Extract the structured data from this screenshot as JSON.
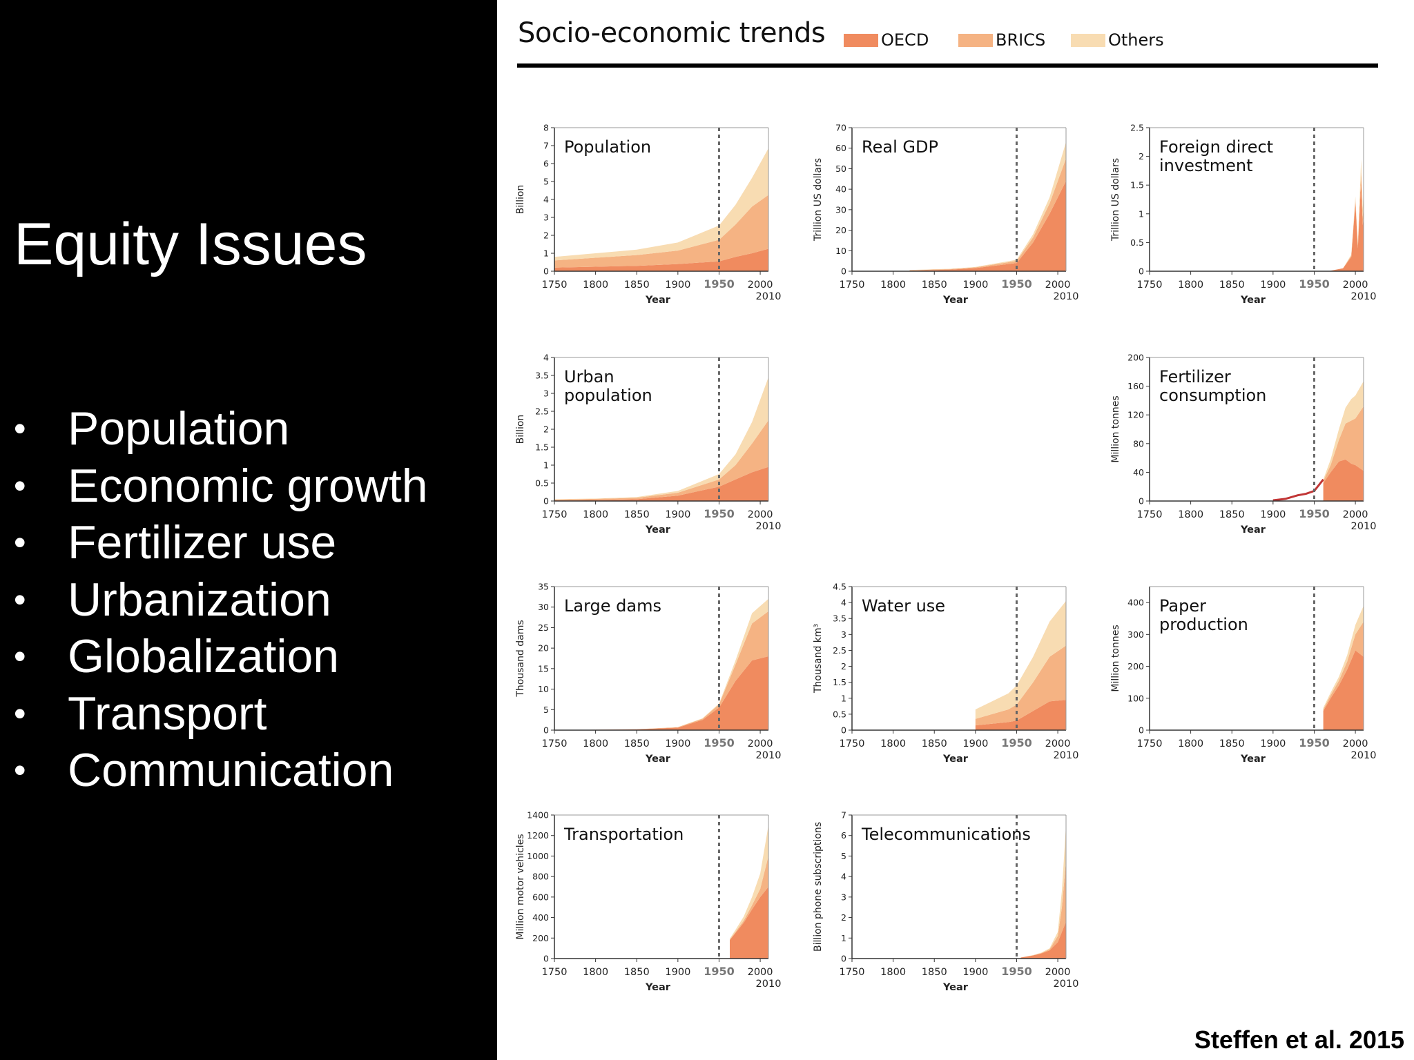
{
  "slide": {
    "title": "Equity Issues",
    "bullets": [
      "Population",
      "Economic growth",
      "Fertilizer use",
      "Urbanization",
      "Globalization",
      "Transport",
      "Communication"
    ],
    "bullet_glyph": "•",
    "citation": "Steffen et al. 2015"
  },
  "colors": {
    "background_left": "#000000",
    "text_left": "#ffffff",
    "oecd": "#f08b5f",
    "brics": "#f5b383",
    "others": "#f8dcb2",
    "oecd_line": "#c13535",
    "reference_line": "#666666"
  },
  "figure": {
    "title": "Socio-economic trends",
    "legend": [
      {
        "label": "OECD",
        "color": "#f08b5f"
      },
      {
        "label": "BRICS",
        "color": "#f5b383"
      },
      {
        "label": "Others",
        "color": "#f8dcb2"
      }
    ]
  },
  "chart_data": [
    {
      "type": "area",
      "title": "Population",
      "ylabel": "Billion",
      "xlabel": "Year",
      "xlim": [
        1750,
        2010
      ],
      "ylim": [
        0,
        8
      ],
      "yticks": [
        "0",
        "1",
        "2",
        "3",
        "4",
        "5",
        "6",
        "7",
        "8"
      ],
      "xticks": [
        "1750",
        "1800",
        "1850",
        "1900",
        "1950",
        "2000"
      ],
      "xend_label": "2010",
      "marker_x": 1950,
      "x": [
        1750,
        1800,
        1850,
        1900,
        1950,
        1970,
        1990,
        2010
      ],
      "series": [
        {
          "name": "OECD",
          "values": [
            0.2,
            0.25,
            0.3,
            0.4,
            0.55,
            0.8,
            1.0,
            1.25
          ]
        },
        {
          "name": "BRICS",
          "values": [
            0.4,
            0.5,
            0.6,
            0.75,
            1.2,
            1.8,
            2.6,
            3.0
          ]
        },
        {
          "name": "Others",
          "values": [
            0.2,
            0.25,
            0.3,
            0.45,
            0.8,
            1.1,
            1.6,
            2.6
          ]
        }
      ]
    },
    {
      "type": "area",
      "title": "Real GDP",
      "ylabel": "Trillion US dollars",
      "xlabel": "Year",
      "xlim": [
        1750,
        2010
      ],
      "ylim": [
        0,
        70
      ],
      "yticks": [
        "0",
        "10",
        "20",
        "30",
        "40",
        "50",
        "60",
        "70"
      ],
      "xticks": [
        "1750",
        "1800",
        "1850",
        "1900",
        "1950",
        "2000"
      ],
      "xend_label": "2010",
      "marker_x": 1950,
      "x": [
        1820,
        1870,
        1900,
        1950,
        1970,
        1990,
        2010
      ],
      "series": [
        {
          "name": "OECD",
          "values": [
            0.3,
            0.8,
            1.5,
            4,
            14,
            28,
            44
          ]
        },
        {
          "name": "BRICS",
          "values": [
            0.2,
            0.3,
            0.4,
            1,
            2.5,
            5,
            11
          ]
        },
        {
          "name": "Others",
          "values": [
            0.1,
            0.1,
            0.2,
            0.6,
            1.5,
            3,
            8
          ]
        }
      ]
    },
    {
      "type": "area",
      "title": "Foreign direct investment",
      "ylabel": "Trillion US dollars",
      "xlabel": "Year",
      "xlim": [
        1750,
        2010
      ],
      "ylim": [
        0,
        2.5
      ],
      "yticks": [
        "0",
        "0.5",
        "1",
        "1.5",
        "2",
        "2.5"
      ],
      "xticks": [
        "1750",
        "1800",
        "1850",
        "1900",
        "1950",
        "2000"
      ],
      "xend_label": "2010",
      "marker_x": 1950,
      "x": [
        1970,
        1985,
        1995,
        2000,
        2003,
        2007,
        2009,
        2010
      ],
      "series": [
        {
          "name": "OECD",
          "values": [
            0.01,
            0.05,
            0.25,
            1.2,
            0.4,
            1.6,
            0.8,
            1.0
          ]
        },
        {
          "name": "BRICS",
          "values": [
            0,
            0,
            0.02,
            0.05,
            0.05,
            0.15,
            0.15,
            0.2
          ]
        },
        {
          "name": "Others",
          "values": [
            0,
            0,
            0.02,
            0.05,
            0.05,
            0.2,
            0.15,
            0.2
          ]
        }
      ]
    },
    {
      "type": "area",
      "title": "Urban population",
      "ylabel": "Billion",
      "xlabel": "Year",
      "xlim": [
        1750,
        2010
      ],
      "ylim": [
        0,
        4
      ],
      "yticks": [
        "0",
        "0.5",
        "1",
        "1.5",
        "2",
        "2.5",
        "3",
        "3.5",
        "4"
      ],
      "xticks": [
        "1750",
        "1800",
        "1850",
        "1900",
        "1950",
        "2000"
      ],
      "xend_label": "2010",
      "marker_x": 1950,
      "x": [
        1750,
        1800,
        1850,
        1900,
        1950,
        1970,
        1990,
        2010
      ],
      "series": [
        {
          "name": "OECD",
          "values": [
            0.02,
            0.03,
            0.05,
            0.15,
            0.4,
            0.6,
            0.8,
            0.95
          ]
        },
        {
          "name": "BRICS",
          "values": [
            0.02,
            0.03,
            0.04,
            0.08,
            0.2,
            0.4,
            0.8,
            1.3
          ]
        },
        {
          "name": "Others",
          "values": [
            0.01,
            0.01,
            0.02,
            0.05,
            0.15,
            0.3,
            0.6,
            1.2
          ]
        }
      ]
    },
    {
      "type": "area",
      "title": "Fertilizer consumption",
      "ylabel": "Million tonnes",
      "xlabel": "Year",
      "xlim": [
        1750,
        2010
      ],
      "ylim": [
        0,
        200
      ],
      "yticks": [
        "0",
        "40",
        "80",
        "120",
        "160",
        "200"
      ],
      "xticks": [
        "1750",
        "1800",
        "1850",
        "1900",
        "1950",
        "2000"
      ],
      "xend_label": "2010",
      "marker_x": 1950,
      "x": [
        1961,
        1970,
        1980,
        1988,
        1995,
        2000,
        2010
      ],
      "series": [
        {
          "name": "OECD",
          "values": [
            25,
            40,
            55,
            58,
            52,
            50,
            42
          ]
        },
        {
          "name": "BRICS",
          "values": [
            3,
            10,
            30,
            50,
            60,
            65,
            90
          ]
        },
        {
          "name": "Others",
          "values": [
            2,
            8,
            15,
            22,
            30,
            32,
            35
          ]
        }
      ],
      "line": {
        "x": [
          1900,
          1915,
          1930,
          1940,
          1950,
          1961
        ],
        "values": [
          1,
          3,
          8,
          10,
          14,
          30
        ]
      }
    },
    {
      "type": "area",
      "title": "Large dams",
      "ylabel": "Thousand dams",
      "xlabel": "Year",
      "xlim": [
        1750,
        2010
      ],
      "ylim": [
        0,
        35
      ],
      "yticks": [
        "0",
        "5",
        "10",
        "15",
        "20",
        "25",
        "30",
        "35"
      ],
      "xticks": [
        "1750",
        "1800",
        "1850",
        "1900",
        "1950",
        "2000"
      ],
      "xend_label": "2010",
      "marker_x": 1950,
      "x": [
        1750,
        1850,
        1900,
        1930,
        1950,
        1970,
        1990,
        2010
      ],
      "series": [
        {
          "name": "OECD",
          "values": [
            0,
            0.2,
            0.6,
            2.5,
            5.5,
            12,
            17,
            18
          ]
        },
        {
          "name": "BRICS",
          "values": [
            0,
            0,
            0.1,
            0.3,
            0.8,
            4,
            9,
            11
          ]
        },
        {
          "name": "Others",
          "values": [
            0,
            0,
            0.05,
            0.1,
            0.2,
            1,
            2.5,
            3
          ]
        }
      ]
    },
    {
      "type": "area",
      "title": "Water use",
      "ylabel": "Thousand km³",
      "xlabel": "Year",
      "xlim": [
        1750,
        2010
      ],
      "ylim": [
        0,
        4.5
      ],
      "yticks": [
        "0",
        "0.5",
        "1",
        "1.5",
        "2",
        "2.5",
        "3",
        "3.5",
        "4",
        "4.5"
      ],
      "xticks": [
        "1750",
        "1800",
        "1850",
        "1900",
        "1950",
        "2000"
      ],
      "xend_label": "2010",
      "marker_x": 1950,
      "x": [
        1900,
        1920,
        1940,
        1950,
        1970,
        1990,
        2010
      ],
      "series": [
        {
          "name": "OECD",
          "values": [
            0.15,
            0.2,
            0.25,
            0.3,
            0.6,
            0.9,
            0.95
          ]
        },
        {
          "name": "BRICS",
          "values": [
            0.2,
            0.3,
            0.4,
            0.5,
            0.9,
            1.4,
            1.7
          ]
        },
        {
          "name": "Others",
          "values": [
            0.3,
            0.4,
            0.5,
            0.6,
            0.8,
            1.1,
            1.4
          ]
        }
      ]
    },
    {
      "type": "area",
      "title": "Paper production",
      "ylabel": "Million tonnes",
      "xlabel": "Year",
      "xlim": [
        1750,
        2010
      ],
      "ylim": [
        0,
        450
      ],
      "yticks": [
        "0",
        "100",
        "200",
        "300",
        "400"
      ],
      "xticks": [
        "1750",
        "1800",
        "1850",
        "1900",
        "1950",
        "2000"
      ],
      "xend_label": "2010",
      "marker_x": 1950,
      "x": [
        1961,
        1970,
        1980,
        1990,
        2000,
        2010
      ],
      "series": [
        {
          "name": "OECD",
          "values": [
            60,
            100,
            140,
            190,
            250,
            230
          ]
        },
        {
          "name": "BRICS",
          "values": [
            5,
            10,
            15,
            25,
            50,
            110
          ]
        },
        {
          "name": "Others",
          "values": [
            5,
            8,
            12,
            20,
            30,
            50
          ]
        }
      ]
    },
    {
      "type": "area",
      "title": "Transportation",
      "ylabel": "Million motor vehicles",
      "xlabel": "Year",
      "xlim": [
        1750,
        2010
      ],
      "ylim": [
        0,
        1400
      ],
      "yticks": [
        "0",
        "200",
        "400",
        "600",
        "800",
        "1000",
        "1200",
        "1400"
      ],
      "xticks": [
        "1750",
        "1800",
        "1850",
        "1900",
        "1950",
        "2000"
      ],
      "xend_label": "2010",
      "marker_x": 1950,
      "x": [
        1963,
        1970,
        1980,
        1990,
        2000,
        2010
      ],
      "series": [
        {
          "name": "OECD",
          "values": [
            180,
            250,
            350,
            480,
            600,
            700
          ]
        },
        {
          "name": "BRICS",
          "values": [
            5,
            10,
            20,
            40,
            80,
            300
          ]
        },
        {
          "name": "Others",
          "values": [
            10,
            20,
            40,
            80,
            150,
            300
          ]
        }
      ]
    },
    {
      "type": "area",
      "title": "Telecommunications",
      "ylabel": "Billion phone subscriptions",
      "xlabel": "Year",
      "xlim": [
        1750,
        2010
      ],
      "ylim": [
        0,
        7
      ],
      "yticks": [
        "0",
        "1",
        "2",
        "3",
        "4",
        "5",
        "6",
        "7"
      ],
      "xticks": [
        "1750",
        "1800",
        "1850",
        "1900",
        "1950",
        "2000"
      ],
      "xend_label": "2010",
      "marker_x": 1950,
      "x": [
        1955,
        1970,
        1980,
        1990,
        2000,
        2005,
        2010
      ],
      "series": [
        {
          "name": "OECD",
          "values": [
            0.05,
            0.15,
            0.25,
            0.4,
            0.8,
            1.3,
            1.8
          ]
        },
        {
          "name": "BRICS",
          "values": [
            0,
            0.01,
            0.02,
            0.05,
            0.3,
            1.2,
            3.0
          ]
        },
        {
          "name": "Others",
          "values": [
            0,
            0.01,
            0.02,
            0.05,
            0.2,
            0.8,
            1.7
          ]
        }
      ]
    }
  ]
}
